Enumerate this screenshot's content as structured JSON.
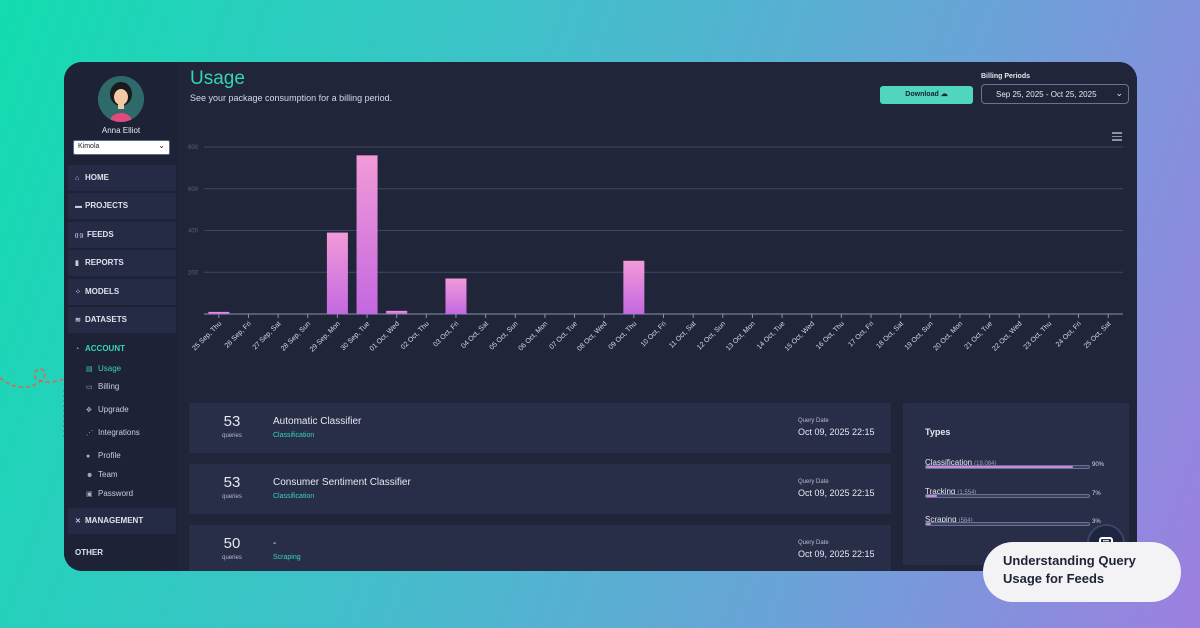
{
  "user": {
    "name": "Anna Elliot",
    "org": "Kimola"
  },
  "nav": [
    {
      "label": "HOME",
      "icon": "home-icon",
      "glyph": "⌂"
    },
    {
      "label": "PROJECTS",
      "icon": "folder-icon",
      "glyph": "▬"
    },
    {
      "label": "FEEDS",
      "icon": "feeds-icon",
      "glyph": "((·))"
    },
    {
      "label": "REPORTS",
      "icon": "bar-chart-icon",
      "glyph": "▮"
    },
    {
      "label": "MODELS",
      "icon": "models-icon",
      "glyph": "⁘"
    },
    {
      "label": "DATASETS",
      "icon": "layers-icon",
      "glyph": "≋"
    },
    {
      "label": "ACCOUNT",
      "icon": "account-icon",
      "glyph": "◔"
    }
  ],
  "account_sub": [
    {
      "label": "Usage",
      "icon": "usage-icon",
      "glyph": "▤"
    },
    {
      "label": "Billing",
      "icon": "card-icon",
      "glyph": "▭"
    },
    {
      "label": "Upgrade",
      "icon": "upgrade-icon",
      "glyph": "✥"
    },
    {
      "label": "Integrations",
      "icon": "integrations-icon",
      "glyph": "⋰"
    },
    {
      "label": "Profile",
      "icon": "person-icon",
      "glyph": "●"
    },
    {
      "label": "Team",
      "icon": "team-icon",
      "glyph": "☻"
    },
    {
      "label": "Password",
      "icon": "lock-icon",
      "glyph": "▣"
    }
  ],
  "nav_management": {
    "label": "MANAGEMENT",
    "icon": "tools-icon",
    "glyph": "✕"
  },
  "nav_other": "OTHER",
  "page": {
    "title": "Usage",
    "subtitle": "See your package consumption for a billing period."
  },
  "download": {
    "label": "Download",
    "icon": "cloud-download-icon"
  },
  "billing": {
    "label": "Billing Periods",
    "value": "Sep 25, 2025 - Oct 25, 2025"
  },
  "chart_data": {
    "type": "bar",
    "categories": [
      "25 Sep, Thu",
      "26 Sep, Fri",
      "27 Sep, Sat",
      "28 Sep, Sun",
      "29 Sep, Mon",
      "30 Sep, Tue",
      "01 Oct, Wed",
      "02 Oct, Thu",
      "03 Oct, Fri",
      "04 Oct, Sat",
      "05 Oct, Sun",
      "06 Oct, Mon",
      "07 Oct, Tue",
      "08 Oct, Wed",
      "09 Oct, Thu",
      "10 Oct, Fri",
      "11 Oct, Sat",
      "12 Oct, Sun",
      "13 Oct, Mon",
      "14 Oct, Tue",
      "15 Oct, Wed",
      "16 Oct, Thu",
      "17 Oct, Fri",
      "18 Oct, Sat",
      "19 Oct, Sun",
      "20 Oct, Mon",
      "21 Oct, Tue",
      "22 Oct, Wed",
      "23 Oct, Thu",
      "24 Oct, Fri",
      "25 Oct, Sat"
    ],
    "values": [
      10,
      0,
      0,
      0,
      390,
      760,
      15,
      0,
      170,
      0,
      0,
      0,
      0,
      0,
      255,
      0,
      0,
      0,
      0,
      0,
      0,
      0,
      0,
      0,
      0,
      0,
      0,
      0,
      0,
      0,
      0
    ],
    "yticks": [
      200,
      400,
      600,
      800
    ],
    "ylim": [
      0,
      800
    ],
    "grid": true,
    "bar_color_top": "#f29ad8",
    "bar_color_bottom": "#c468e0"
  },
  "queries": [
    {
      "count": "53",
      "unit": "queries",
      "title": "Automatic Classifier",
      "type": "Classification",
      "date_label": "Query Date",
      "date": "Oct 09, 2025 22:15"
    },
    {
      "count": "53",
      "unit": "queries",
      "title": "Consumer Sentiment Classifier",
      "type": "Classification",
      "date_label": "Query Date",
      "date": "Oct 09, 2025 22:15"
    },
    {
      "count": "50",
      "unit": "queries",
      "title": "-",
      "type": "Scraping",
      "date_label": "Query Date",
      "date": "Oct 09, 2025 22:15"
    }
  ],
  "types": {
    "title": "Types",
    "items": [
      {
        "label": "Classification",
        "count": "(19,084)",
        "pct": "90%",
        "fraction": 0.9
      },
      {
        "label": "Tracking",
        "count": "(1,554)",
        "pct": "7%",
        "fraction": 0.07
      },
      {
        "label": "Scraping",
        "count": "(584)",
        "pct": "3%",
        "fraction": 0.03
      }
    ]
  },
  "callout": {
    "line1": "Understanding Query",
    "line2": "Usage for Feeds"
  },
  "colors": {
    "accent": "#35d4b8",
    "panel": "#1d2236",
    "card": "#282e48"
  }
}
